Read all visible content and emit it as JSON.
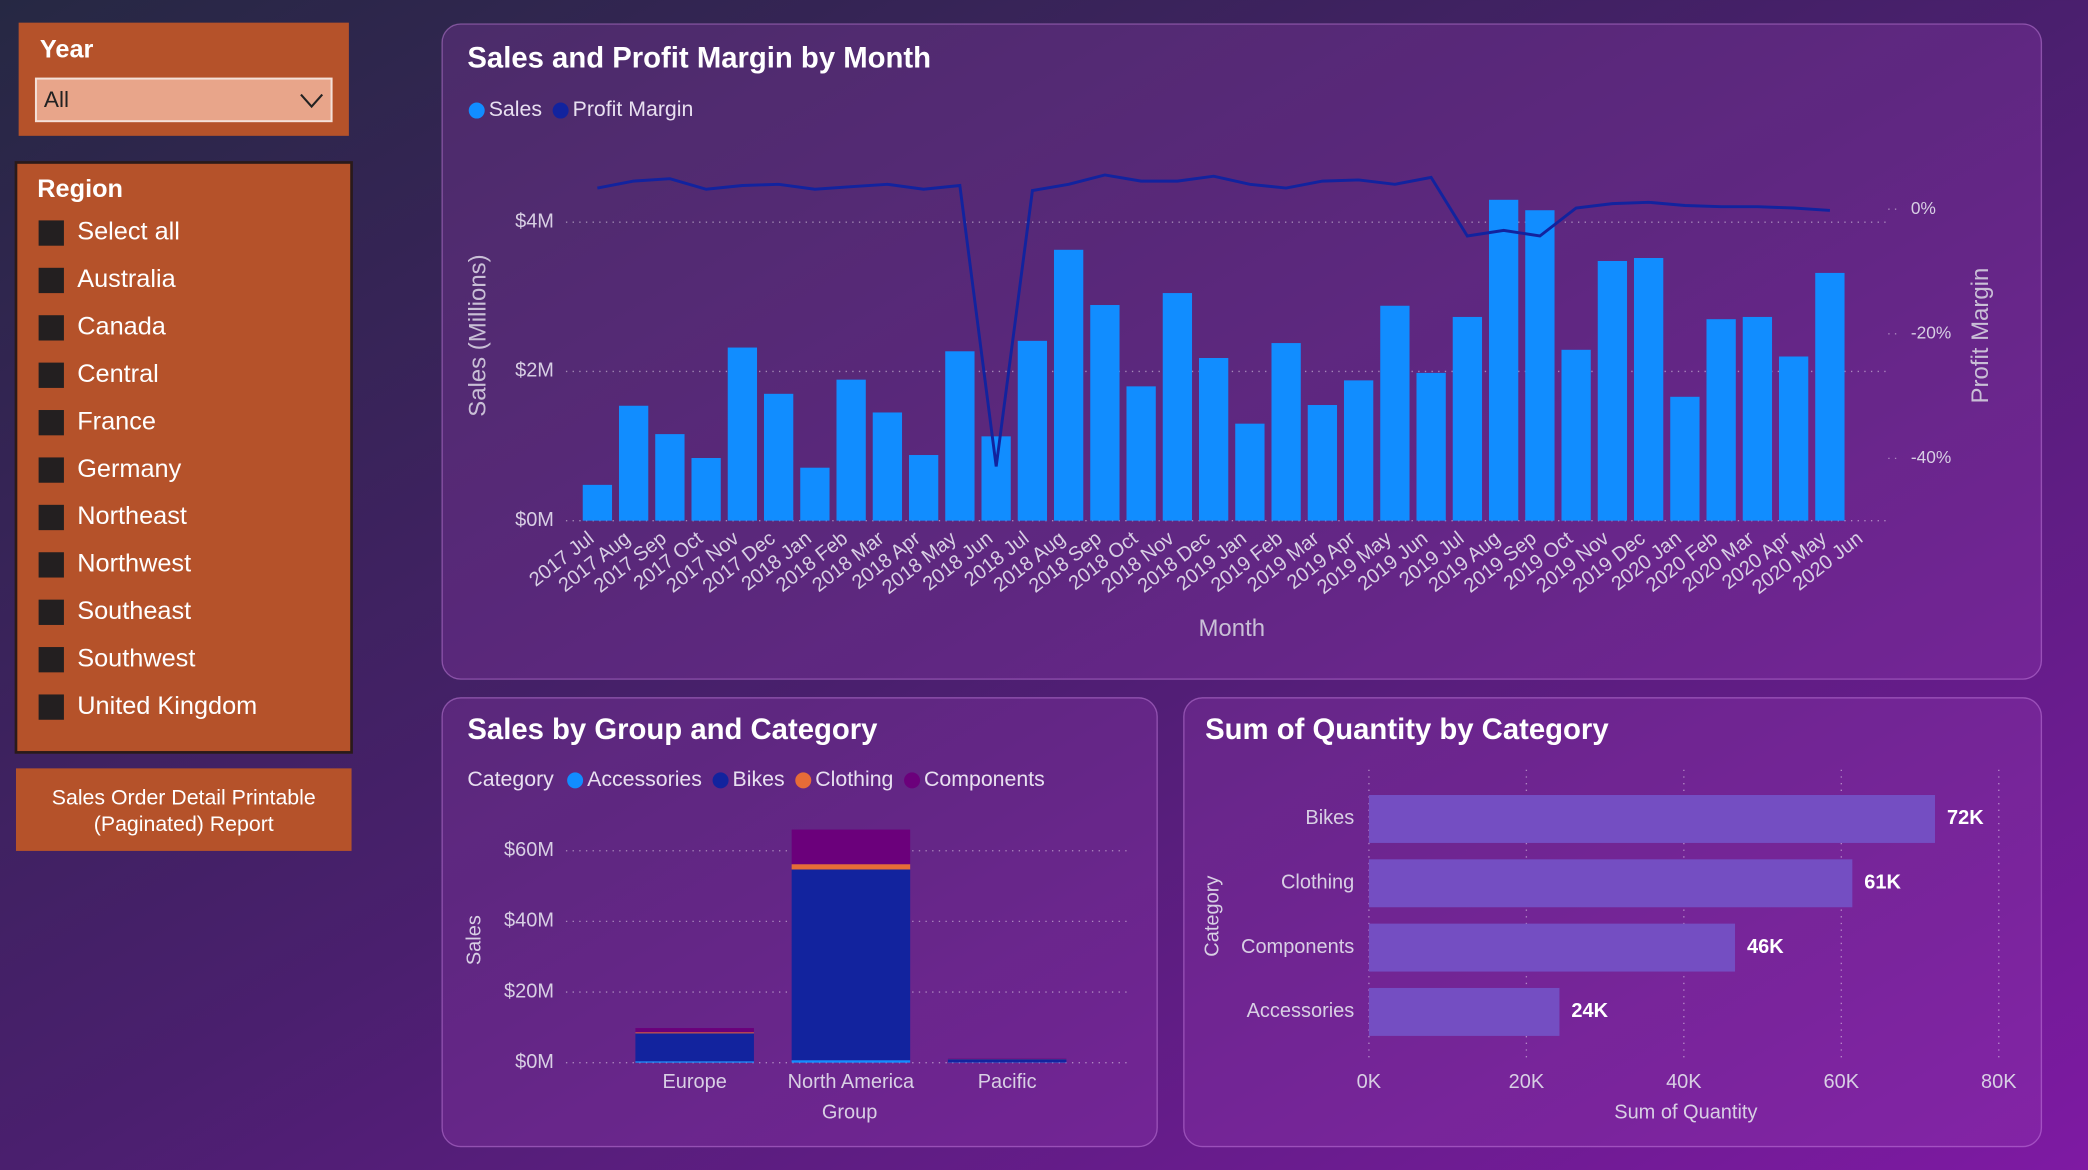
{
  "slicers": {
    "year": {
      "title": "Year",
      "selected": "All"
    },
    "region": {
      "title": "Region",
      "items": [
        "Select all",
        "Australia",
        "Canada",
        "Central",
        "France",
        "Germany",
        "Northeast",
        "Northwest",
        "Southeast",
        "Southwest",
        "United Kingdom"
      ]
    }
  },
  "button": {
    "lines": [
      "Sales Order Detail Printable",
      "(Paginated) Report"
    ]
  },
  "chart_data": [
    {
      "type": "combo",
      "title": "Sales and Profit Margin by Month",
      "x_label": "Month",
      "y_label": "Sales (Millions)",
      "y2_label": "Profit Margin",
      "categories": [
        "2017 Jul",
        "2017 Aug",
        "2017 Sep",
        "2017 Oct",
        "2017 Nov",
        "2017 Dec",
        "2018 Jan",
        "2018 Feb",
        "2018 Mar",
        "2018 Apr",
        "2018 May",
        "2018 Jun",
        "2018 Jul",
        "2018 Aug",
        "2018 Sep",
        "2018 Oct",
        "2018 Nov",
        "2018 Dec",
        "2019 Jan",
        "2019 Feb",
        "2019 Mar",
        "2019 Apr",
        "2019 May",
        "2019 Jun",
        "2019 Jul",
        "2019 Aug",
        "2019 Sep",
        "2019 Oct",
        "2019 Nov",
        "2019 Dec",
        "2020 Jan",
        "2020 Feb",
        "2020 Mar",
        "2020 Apr",
        "2020 May",
        "2020 Jun"
      ],
      "series": [
        {
          "name": "Sales",
          "color": "#118dff",
          "values": [
            0.48,
            1.54,
            1.16,
            0.84,
            2.32,
            1.7,
            0.71,
            1.89,
            1.45,
            0.88,
            2.27,
            1.13,
            2.41,
            3.63,
            2.89,
            1.8,
            3.05,
            2.18,
            1.3,
            2.38,
            1.55,
            1.88,
            2.88,
            1.98,
            2.73,
            4.3,
            4.16,
            2.29,
            3.48,
            3.52,
            1.66,
            2.7,
            2.73,
            2.2,
            3.32,
            null
          ]
        },
        {
          "name": "Profit Margin",
          "color": "#12239e",
          "axis": "y2",
          "values": [
            3.4,
            4.5,
            4.9,
            3.2,
            3.8,
            4.0,
            3.2,
            3.6,
            4.0,
            3.2,
            3.8,
            -41.3,
            3.0,
            4.0,
            5.5,
            4.5,
            4.5,
            5.3,
            4.0,
            3.4,
            4.5,
            4.7,
            4.0,
            5.1,
            -4.3,
            -3.4,
            -4.3,
            0.2,
            0.9,
            1.1,
            0.6,
            0.4,
            0.4,
            0.2,
            -0.2,
            null
          ]
        }
      ],
      "ylim": [
        0,
        4.8
      ],
      "yticks": [
        {
          "value": 0,
          "label": "$0M"
        },
        {
          "value": 2,
          "label": "$2M"
        },
        {
          "value": 4,
          "label": "$4M"
        }
      ],
      "y2lim": [
        -50,
        7.5
      ],
      "y2ticks": [
        {
          "value": 0,
          "label": "0%"
        },
        {
          "value": -20,
          "label": "-20%"
        },
        {
          "value": -40,
          "label": "-40%"
        }
      ],
      "grid": true
    },
    {
      "type": "stacked_bar",
      "title": "Sales by Group and Category",
      "legend_title": "Category",
      "x_label": "Group",
      "y_label": "Sales",
      "categories": [
        "Europe",
        "North America",
        "Pacific"
      ],
      "series": [
        {
          "name": "Accessories",
          "color": "#118dff",
          "values": [
            0.4,
            0.7,
            0.1
          ]
        },
        {
          "name": "Bikes",
          "color": "#12239e",
          "values": [
            7.9,
            54.0,
            0.9
          ]
        },
        {
          "name": "Clothing",
          "color": "#e66c37",
          "values": [
            0.3,
            1.5,
            0.05
          ]
        },
        {
          "name": "Components",
          "color": "#6b007b",
          "values": [
            1.2,
            9.8,
            0.1
          ]
        }
      ],
      "ylim": [
        0,
        69
      ],
      "yticks": [
        {
          "value": 0,
          "label": "$0M"
        },
        {
          "value": 20,
          "label": "$20M"
        },
        {
          "value": 40,
          "label": "$40M"
        },
        {
          "value": 60,
          "label": "$60M"
        }
      ],
      "grid": true
    },
    {
      "type": "hbar",
      "title": "Sum of Quantity by Category",
      "x_label": "Sum of Quantity",
      "y_label": "Category",
      "categories": [
        "Bikes",
        "Clothing",
        "Components",
        "Accessories"
      ],
      "values": [
        71.9,
        61.4,
        46.5,
        24.2
      ],
      "value_labels": [
        "72K",
        "61K",
        "46K",
        "24K"
      ],
      "color": "#744ec2",
      "xlim": [
        0,
        80
      ],
      "xticks": [
        {
          "value": 0,
          "label": "0K"
        },
        {
          "value": 20,
          "label": "20K"
        },
        {
          "value": 40,
          "label": "40K"
        },
        {
          "value": 60,
          "label": "60K"
        },
        {
          "value": 80,
          "label": "80K"
        }
      ],
      "grid": true
    }
  ]
}
